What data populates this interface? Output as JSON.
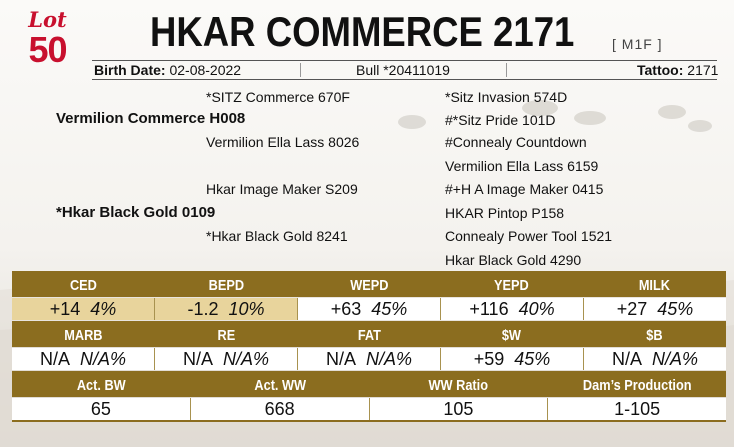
{
  "lot": {
    "word": "Lot",
    "number": "50"
  },
  "animal": {
    "name": "HKAR COMMERCE 2171",
    "tag_note": "[ M1F ]"
  },
  "info": {
    "birth_label": "Birth Date:",
    "birth_value": "02-08-2022",
    "sex_id": "Bull *20411019",
    "tattoo_label": "Tattoo:",
    "tattoo_value": "2171"
  },
  "pedigree": {
    "sire": "Vermilion Commerce H008",
    "dam": "*Hkar Black Gold 0109",
    "sire_sire": "*SITZ Commerce 670F",
    "sire_dam": "Vermilion Ella Lass 8026",
    "dam_sire": "Hkar Image Maker S209",
    "dam_dam": "*Hkar Black Gold 8241",
    "g3": [
      "*Sitz Invasion 574D",
      "#*Sitz Pride 101D",
      "#Connealy Countdown",
      "Vermilion Ella Lass 6159",
      "#+H A Image Maker 0415",
      "HKAR Pintop P158",
      "Connealy Power Tool 1521",
      "Hkar Black Gold 4290"
    ]
  },
  "epd_row1": [
    {
      "label": "CED",
      "value": "+14",
      "pct": "4%"
    },
    {
      "label": "BEPD",
      "value": "-1.2",
      "pct": "10%"
    },
    {
      "label": "WEPD",
      "value": "+63",
      "pct": "45%"
    },
    {
      "label": "YEPD",
      "value": "+116",
      "pct": "40%"
    },
    {
      "label": "MILK",
      "value": "+27",
      "pct": "45%"
    }
  ],
  "epd_row2": [
    {
      "label": "MARB",
      "value": "N/A",
      "pct": "N/A%"
    },
    {
      "label": "RE",
      "value": "N/A",
      "pct": "N/A%"
    },
    {
      "label": "FAT",
      "value": "N/A",
      "pct": "N/A%"
    },
    {
      "label": "$W",
      "value": "+59",
      "pct": "45%"
    },
    {
      "label": "$B",
      "value": "N/A",
      "pct": "N/A%"
    }
  ],
  "perf_row": [
    {
      "label": "Act. BW",
      "value": "65"
    },
    {
      "label": "Act. WW",
      "value": "668"
    },
    {
      "label": "WW Ratio",
      "value": "105"
    },
    {
      "label": "Dam’s Production",
      "value": "1-105"
    }
  ],
  "colors": {
    "accent_gold": "#8b6d1f",
    "highlight": "#e8d49c",
    "lot_red": "#c8102e"
  }
}
